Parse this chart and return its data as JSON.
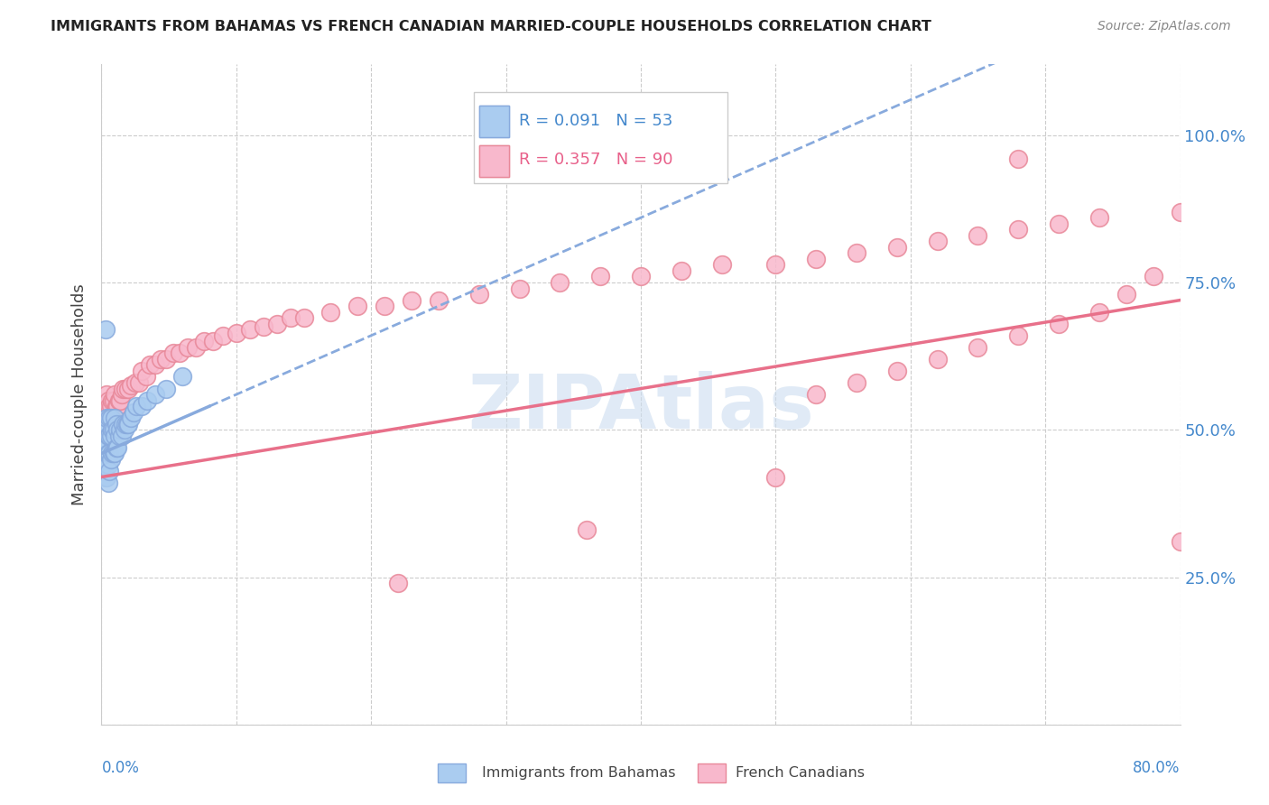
{
  "title": "IMMIGRANTS FROM BAHAMAS VS FRENCH CANADIAN MARRIED-COUPLE HOUSEHOLDS CORRELATION CHART",
  "source": "Source: ZipAtlas.com",
  "ylabel": "Married-couple Households",
  "ytick_labels": [
    "",
    "25.0%",
    "50.0%",
    "75.0%",
    "100.0%"
  ],
  "ytick_positions": [
    0.0,
    0.25,
    0.5,
    0.75,
    1.0
  ],
  "xmin": 0.0,
  "xmax": 0.8,
  "ymin": 0.0,
  "ymax": 1.12,
  "legend_line1": "R = 0.091   N = 53",
  "legend_line2": "R = 0.357   N = 90",
  "color_bahamas_fill": "#aaccf0",
  "color_bahamas_edge": "#88aadd",
  "color_french_fill": "#f8b8cc",
  "color_french_edge": "#e88899",
  "color_bahamas_line": "#88aadd",
  "color_french_line": "#e8708a",
  "color_blue_text": "#4488cc",
  "color_pink_text": "#e8608a",
  "color_grid": "#cccccc",
  "color_spine": "#cccccc",
  "watermark_color": "#ccddf0",
  "bah_x": [
    0.001,
    0.001,
    0.002,
    0.002,
    0.002,
    0.003,
    0.003,
    0.003,
    0.003,
    0.004,
    0.004,
    0.004,
    0.004,
    0.004,
    0.005,
    0.005,
    0.005,
    0.005,
    0.006,
    0.006,
    0.006,
    0.006,
    0.007,
    0.007,
    0.007,
    0.008,
    0.008,
    0.009,
    0.009,
    0.01,
    0.01,
    0.01,
    0.011,
    0.011,
    0.012,
    0.012,
    0.013,
    0.014,
    0.015,
    0.016,
    0.017,
    0.018,
    0.019,
    0.02,
    0.022,
    0.024,
    0.026,
    0.03,
    0.034,
    0.04,
    0.048,
    0.06,
    0.003
  ],
  "bah_y": [
    0.44,
    0.48,
    0.43,
    0.46,
    0.5,
    0.42,
    0.45,
    0.48,
    0.51,
    0.42,
    0.45,
    0.47,
    0.5,
    0.52,
    0.41,
    0.44,
    0.46,
    0.49,
    0.43,
    0.46,
    0.49,
    0.52,
    0.45,
    0.49,
    0.52,
    0.46,
    0.5,
    0.46,
    0.5,
    0.46,
    0.49,
    0.52,
    0.47,
    0.51,
    0.47,
    0.5,
    0.49,
    0.5,
    0.49,
    0.51,
    0.5,
    0.51,
    0.51,
    0.51,
    0.52,
    0.53,
    0.54,
    0.54,
    0.55,
    0.56,
    0.57,
    0.59,
    0.67
  ],
  "fr_x": [
    0.001,
    0.001,
    0.002,
    0.002,
    0.003,
    0.003,
    0.003,
    0.004,
    0.004,
    0.004,
    0.005,
    0.005,
    0.005,
    0.006,
    0.006,
    0.007,
    0.007,
    0.008,
    0.008,
    0.009,
    0.009,
    0.01,
    0.01,
    0.011,
    0.012,
    0.013,
    0.014,
    0.015,
    0.016,
    0.018,
    0.02,
    0.022,
    0.025,
    0.028,
    0.03,
    0.033,
    0.036,
    0.04,
    0.044,
    0.048,
    0.053,
    0.058,
    0.064,
    0.07,
    0.076,
    0.083,
    0.09,
    0.1,
    0.11,
    0.12,
    0.13,
    0.14,
    0.15,
    0.17,
    0.19,
    0.21,
    0.23,
    0.25,
    0.28,
    0.31,
    0.34,
    0.37,
    0.4,
    0.43,
    0.46,
    0.5,
    0.53,
    0.56,
    0.59,
    0.62,
    0.65,
    0.68,
    0.71,
    0.74,
    0.53,
    0.56,
    0.59,
    0.62,
    0.65,
    0.68,
    0.71,
    0.74,
    0.76,
    0.78,
    0.8,
    0.68,
    0.5,
    0.36,
    0.22,
    0.8
  ],
  "fr_y": [
    0.47,
    0.51,
    0.47,
    0.5,
    0.48,
    0.51,
    0.54,
    0.49,
    0.52,
    0.56,
    0.5,
    0.53,
    0.55,
    0.5,
    0.54,
    0.51,
    0.54,
    0.51,
    0.55,
    0.51,
    0.55,
    0.52,
    0.56,
    0.54,
    0.54,
    0.55,
    0.55,
    0.56,
    0.57,
    0.57,
    0.57,
    0.575,
    0.58,
    0.58,
    0.6,
    0.59,
    0.61,
    0.61,
    0.62,
    0.62,
    0.63,
    0.63,
    0.64,
    0.64,
    0.65,
    0.65,
    0.66,
    0.665,
    0.67,
    0.675,
    0.68,
    0.69,
    0.69,
    0.7,
    0.71,
    0.71,
    0.72,
    0.72,
    0.73,
    0.74,
    0.75,
    0.76,
    0.76,
    0.77,
    0.78,
    0.78,
    0.79,
    0.8,
    0.81,
    0.82,
    0.83,
    0.84,
    0.85,
    0.86,
    0.56,
    0.58,
    0.6,
    0.62,
    0.64,
    0.66,
    0.68,
    0.7,
    0.73,
    0.76,
    0.87,
    0.96,
    0.42,
    0.33,
    0.24,
    0.31
  ],
  "bah_trend_x": [
    0.0,
    0.08
  ],
  "bah_trend_y": [
    0.46,
    0.54
  ],
  "fr_trend_x": [
    0.0,
    0.8
  ],
  "fr_trend_y": [
    0.42,
    0.72
  ]
}
